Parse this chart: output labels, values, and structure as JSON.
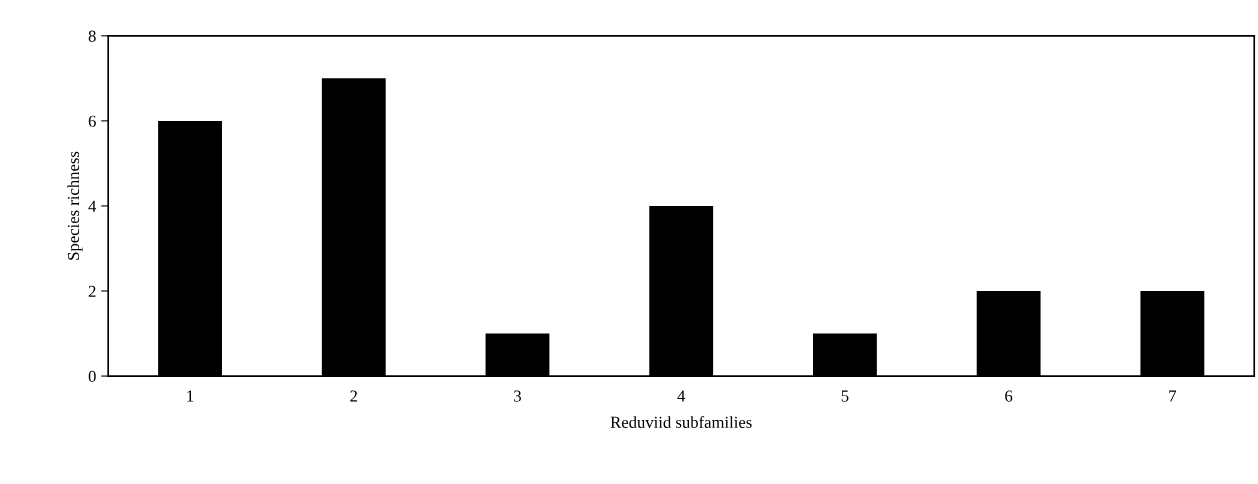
{
  "chart_data": {
    "type": "bar",
    "xlabel": "Reduviid subfamilies",
    "ylabel": "Species richness",
    "categories": [
      "1",
      "2",
      "3",
      "4",
      "5",
      "6",
      "7"
    ],
    "values": [
      6,
      7,
      1,
      4,
      1,
      2,
      2
    ],
    "color": "#000000",
    "ylim": [
      0,
      8
    ],
    "yticks": [
      0,
      2,
      4,
      6,
      8
    ],
    "grid": false,
    "legend": false
  }
}
